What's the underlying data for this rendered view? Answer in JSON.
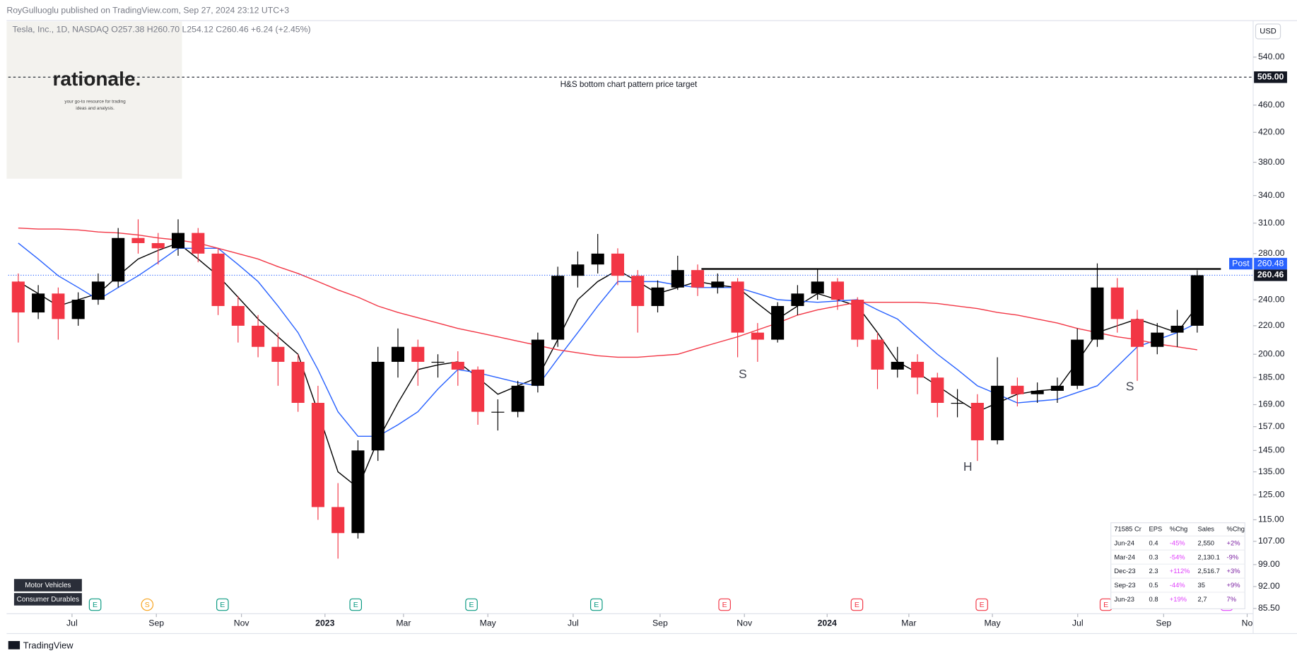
{
  "header": {
    "publisher": "RoyGulluoglu published on TradingView.com, Sep 27, 2024 23:12 UTC+3",
    "footer": "TradingView",
    "currency": "USD"
  },
  "logo": {
    "name": "rationale.",
    "tagline": [
      "your go-to resource for trading",
      "ideas and analysis."
    ]
  },
  "badges": [
    "Motor Vehicles",
    "Consumer Durables"
  ],
  "events": [
    "E",
    "S",
    "E",
    "E",
    "E",
    "E",
    "E",
    "E",
    "E",
    "E",
    "E"
  ],
  "annotations": [
    "S",
    "H",
    "S"
  ],
  "table": {
    "header": [
      "71585 Cr",
      "EPS",
      "%Chg",
      "Sales",
      "%Chg"
    ],
    "rows": [
      [
        "Jun-24",
        "0.4",
        "-45%",
        "2,550",
        "+2%"
      ],
      [
        "Mar-24",
        "0.3",
        "-54%",
        "2,130.1",
        "-9%"
      ],
      [
        "Dec-23",
        "2.3",
        "+112%",
        "2,516.7",
        "+3%"
      ],
      [
        "Sep-23",
        "0.5",
        "-44%",
        "35",
        "+9%"
      ],
      [
        "Jun-23",
        "0.8",
        "+19%",
        "2,7",
        "7%"
      ]
    ]
  },
  "chart_data": {
    "type": "candlestick",
    "symbol_line": "Tesla, Inc., 1D, NASDAQ  O257.38  H260.70  L254.12  C260.46  +6.24 (+2.45%)",
    "log_scale": true,
    "grid": false,
    "ylim": [
      84,
      610
    ],
    "yticks": [
      {
        "value": 540,
        "label": "540.00"
      },
      {
        "value": 460,
        "label": "460.00"
      },
      {
        "value": 420,
        "label": "420.00"
      },
      {
        "value": 380,
        "label": "380.00"
      },
      {
        "value": 340,
        "label": "340.00"
      },
      {
        "value": 310,
        "label": "310.00"
      },
      {
        "value": 280,
        "label": "280.00"
      },
      {
        "value": 240,
        "label": "240.00"
      },
      {
        "value": 220,
        "label": "220.00"
      },
      {
        "value": 200,
        "label": "200.00"
      },
      {
        "value": 185,
        "label": "185.00"
      },
      {
        "value": 169,
        "label": "169.00"
      },
      {
        "value": 157,
        "label": "157.00"
      },
      {
        "value": 145,
        "label": "145.00"
      },
      {
        "value": 135,
        "label": "135.00"
      },
      {
        "value": 125,
        "label": "125.00"
      },
      {
        "value": 115,
        "label": "115.00"
      },
      {
        "value": 107,
        "label": "107.00"
      },
      {
        "value": 99,
        "label": "99.00"
      },
      {
        "value": 92,
        "label": "92.00"
      },
      {
        "value": 85.5,
        "label": "85.50"
      }
    ],
    "xlim": [
      0,
      62.3
    ],
    "xticks": [
      {
        "value": 3.19,
        "label": "Jul"
      },
      {
        "value": 7.41,
        "label": "Sep"
      },
      {
        "value": 11.67,
        "label": "Nov"
      },
      {
        "value": 15.85,
        "label": "2023"
      },
      {
        "value": 19.78,
        "label": "Mar"
      },
      {
        "value": 24,
        "label": "May"
      },
      {
        "value": 28.27,
        "label": "Jul"
      },
      {
        "value": 32.62,
        "label": "Sep"
      },
      {
        "value": 36.84,
        "label": "Nov"
      },
      {
        "value": 40.98,
        "label": "2024"
      },
      {
        "value": 45.07,
        "label": "Mar"
      },
      {
        "value": 49.25,
        "label": "May"
      },
      {
        "value": 53.52,
        "label": "Jul"
      },
      {
        "value": 57.82,
        "label": "Sep"
      },
      {
        "value": 62,
        "label": "No"
      }
    ],
    "up_color": "#000000",
    "down_color": "#f23645",
    "open": [
      255,
      230,
      245,
      225,
      240,
      255,
      295,
      290,
      285,
      300,
      280,
      235,
      220,
      205,
      195,
      170,
      120,
      110,
      145,
      195,
      205,
      195,
      195,
      190,
      165,
      165,
      180,
      210,
      260,
      270,
      280,
      260,
      235,
      250,
      265,
      250,
      255,
      215,
      210,
      235,
      245,
      255,
      240,
      210,
      190,
      195,
      185,
      170,
      170,
      150,
      180,
      175,
      177,
      180,
      210,
      250,
      225,
      205,
      215,
      220
    ],
    "high": [
      262,
      252,
      250,
      246,
      262,
      305,
      314,
      300,
      314,
      305,
      285,
      243,
      228,
      215,
      200,
      180,
      130,
      150,
      205,
      218,
      210,
      200,
      202,
      192,
      172,
      183,
      215,
      268,
      282,
      299,
      285,
      265,
      256,
      278,
      270,
      262,
      258,
      222,
      238,
      252,
      266,
      258,
      242,
      215,
      205,
      200,
      188,
      178,
      175,
      198,
      185,
      182,
      185,
      218,
      271,
      258,
      232,
      222,
      232,
      264.86
    ],
    "low": [
      208,
      225,
      210,
      220,
      236,
      250,
      280,
      270,
      278,
      272,
      228,
      208,
      198,
      180,
      165,
      115,
      101,
      108,
      140,
      185,
      180,
      185,
      180,
      158,
      155,
      162,
      176,
      205,
      250,
      262,
      252,
      215,
      230,
      248,
      243,
      245,
      198,
      195,
      208,
      228,
      240,
      232,
      205,
      178,
      185,
      175,
      162,
      162,
      140,
      148,
      168,
      170,
      170,
      178,
      205,
      215,
      183,
      200,
      205,
      215
    ],
    "close": [
      230,
      245,
      225,
      240,
      255,
      295,
      290,
      285,
      300,
      280,
      235,
      220,
      205,
      195,
      170,
      120,
      110,
      145,
      195,
      205,
      195,
      195,
      190,
      165,
      165,
      180,
      210,
      260,
      270,
      280,
      260,
      235,
      250,
      265,
      250,
      255,
      215,
      210,
      235,
      245,
      255,
      240,
      210,
      190,
      195,
      185,
      170,
      170,
      150,
      180,
      175,
      177,
      180,
      210,
      250,
      225,
      205,
      215,
      220,
      260.46
    ],
    "series": [
      {
        "color": "#000000",
        "values": [
          255,
          245,
          235,
          240,
          245,
          260,
          275,
          283,
          290,
          275,
          260,
          242,
          225,
          212,
          200,
          165,
          135,
          128,
          150,
          170,
          190,
          193,
          195,
          185,
          175,
          180,
          185,
          210,
          240,
          255,
          265,
          255,
          245,
          250,
          255,
          252,
          250,
          237,
          225,
          235,
          245,
          240,
          235,
          215,
          195,
          188,
          180,
          172,
          165,
          170,
          175,
          177,
          178,
          195,
          215,
          220,
          225,
          220,
          215,
          235
        ]
      },
      {
        "color": "#2962ff",
        "values": [
          290,
          275,
          260,
          250,
          240,
          250,
          260,
          272,
          285,
          285,
          285,
          270,
          255,
          235,
          215,
          190,
          165,
          152,
          152,
          158,
          165,
          178,
          190,
          188,
          185,
          182,
          180,
          197,
          215,
          235,
          255,
          255,
          255,
          252,
          250,
          250,
          250,
          245,
          240,
          239,
          238,
          239,
          240,
          232,
          225,
          212,
          200,
          190,
          180,
          175,
          170,
          171,
          172,
          176,
          180,
          192,
          205,
          210,
          215,
          222
        ]
      },
      {
        "color": "#f23645",
        "values": [
          305,
          304,
          304,
          303,
          301,
          300,
          298,
          295,
          293,
          290,
          285,
          280,
          275,
          268,
          262,
          255,
          248,
          242,
          235,
          230,
          226,
          222,
          218,
          215,
          212,
          209,
          206,
          203,
          201,
          199,
          198,
          198,
          199,
          200,
          204,
          208,
          212,
          217,
          222,
          228,
          232,
          235,
          238,
          238,
          238,
          238,
          237,
          235,
          233,
          230,
          228,
          225,
          222,
          218,
          215,
          212,
          210,
          207,
          205,
          203
        ]
      }
    ],
    "price_target": {
      "value": 505,
      "label": "505.00",
      "text": "H&S bottom chart pattern price target"
    },
    "neckline": 266,
    "last_price": 260.46,
    "post": {
      "label": "Post",
      "value": 260.48
    }
  }
}
